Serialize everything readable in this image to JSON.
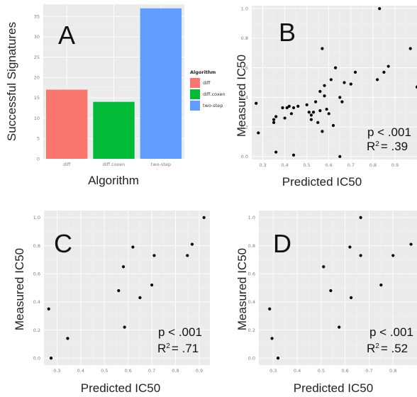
{
  "chart_data": [
    {
      "panel": "A",
      "type": "bar",
      "categories": [
        "diff",
        "diff.coxen",
        "two-step"
      ],
      "values": [
        17,
        14,
        37
      ],
      "colors": [
        "#f8766d",
        "#00ba38",
        "#619cff"
      ],
      "xlabel": "Algorithm",
      "ylabel": "Successful Signatures",
      "ylim": [
        0,
        38
      ],
      "yticks": [
        "0",
        "5",
        "10",
        "15",
        "20",
        "25",
        "30",
        "35"
      ],
      "legend": {
        "title": "Algorithm",
        "entries": [
          "diff",
          "diff.coxen",
          "two-step"
        ],
        "placement": "right"
      },
      "grid": true
    },
    {
      "panel": "B",
      "type": "scatter",
      "xlabel": "Predicted IC50",
      "ylabel": "Measured IC50",
      "xlim": [
        0.25,
        1.0
      ],
      "ylim": [
        -0.02,
        1.02
      ],
      "xticks": [
        "0.3",
        "0.4",
        "0.5",
        "0.6",
        "0.7",
        "0.8",
        "0.9"
      ],
      "yticks": [
        "0.0",
        "0.2",
        "0.4",
        "0.6",
        "0.8",
        "1.0"
      ],
      "p_text": "p < .001",
      "r2_prefix": "R",
      "r2_sup": "2",
      "r2_value": "= .39",
      "grid": true,
      "points": [
        [
          0.27,
          0.36
        ],
        [
          0.28,
          0.16
        ],
        [
          0.35,
          0.25
        ],
        [
          0.35,
          0.23
        ],
        [
          0.36,
          0.27
        ],
        [
          0.36,
          0.03
        ],
        [
          0.39,
          0.33
        ],
        [
          0.4,
          0.26
        ],
        [
          0.41,
          0.33
        ],
        [
          0.42,
          0.34
        ],
        [
          0.43,
          0.29
        ],
        [
          0.44,
          0.01
        ],
        [
          0.44,
          0.33
        ],
        [
          0.46,
          0.34
        ],
        [
          0.5,
          0.35
        ],
        [
          0.51,
          0.3
        ],
        [
          0.52,
          0.25
        ],
        [
          0.52,
          0.28
        ],
        [
          0.53,
          0.3
        ],
        [
          0.54,
          0.37
        ],
        [
          0.55,
          0.23
        ],
        [
          0.56,
          0.31
        ],
        [
          0.56,
          0.44
        ],
        [
          0.57,
          0.17
        ],
        [
          0.58,
          0.48
        ],
        [
          0.58,
          0.41
        ],
        [
          0.57,
          0.73
        ],
        [
          0.59,
          0.32
        ],
        [
          0.6,
          0.29
        ],
        [
          0.61,
          0.52
        ],
        [
          0.62,
          0.21
        ],
        [
          0.63,
          0.6
        ],
        [
          0.65,
          0.4
        ],
        [
          0.66,
          0.37
        ],
        [
          0.67,
          0.5
        ],
        [
          0.65,
          0.0
        ],
        [
          0.7,
          0.49
        ],
        [
          0.72,
          0.57
        ],
        [
          0.82,
          0.52
        ],
        [
          0.83,
          1.0
        ],
        [
          0.85,
          0.57
        ],
        [
          0.87,
          0.61
        ],
        [
          0.97,
          0.73
        ],
        [
          1.0,
          0.47
        ]
      ]
    },
    {
      "panel": "C",
      "type": "scatter",
      "xlabel": "Predicted IC50",
      "ylabel": "Measured IC50",
      "xlim": [
        0.245,
        0.945
      ],
      "ylim": [
        -0.05,
        1.05
      ],
      "xticks": [
        "0.3",
        "0.4",
        "0.5",
        "0.6",
        "0.7",
        "0.8",
        "0.9"
      ],
      "yticks": [
        "0.0",
        "0.2",
        "0.4",
        "0.6",
        "0.8",
        "1.0"
      ],
      "p_text": "p < .001",
      "r2_prefix": "R",
      "r2_sup": "2",
      "r2_value": "= .71",
      "grid": true,
      "points": [
        [
          0.265,
          0.35
        ],
        [
          0.275,
          0.0
        ],
        [
          0.345,
          0.14
        ],
        [
          0.56,
          0.48
        ],
        [
          0.58,
          0.65
        ],
        [
          0.585,
          0.22
        ],
        [
          0.62,
          0.79
        ],
        [
          0.65,
          0.43
        ],
        [
          0.7,
          0.52
        ],
        [
          0.71,
          0.73
        ],
        [
          0.85,
          0.73
        ],
        [
          0.87,
          0.81
        ],
        [
          0.92,
          1.0
        ]
      ]
    },
    {
      "panel": "D",
      "type": "scatter",
      "xlabel": "Predicted IC50",
      "ylabel": "Measured IC50",
      "xlim": [
        0.24,
        0.9
      ],
      "ylim": [
        -0.05,
        1.05
      ],
      "xticks": [
        "0.3",
        "0.4",
        "0.5",
        "0.6",
        "0.7",
        "0.8"
      ],
      "yticks": [
        "0.0",
        "0.2",
        "0.4",
        "0.6",
        "0.8",
        "1.0"
      ],
      "p_text": "p < .001",
      "r2_prefix": "R",
      "r2_sup": "2",
      "r2_value": "= .52",
      "grid": true,
      "points": [
        [
          0.285,
          0.35
        ],
        [
          0.295,
          0.14
        ],
        [
          0.32,
          0.0
        ],
        [
          0.51,
          0.65
        ],
        [
          0.54,
          0.48
        ],
        [
          0.575,
          0.22
        ],
        [
          0.62,
          0.79
        ],
        [
          0.625,
          0.43
        ],
        [
          0.665,
          0.73
        ],
        [
          0.665,
          1.0
        ],
        [
          0.75,
          0.52
        ],
        [
          0.8,
          0.73
        ],
        [
          0.875,
          0.81
        ]
      ]
    }
  ]
}
